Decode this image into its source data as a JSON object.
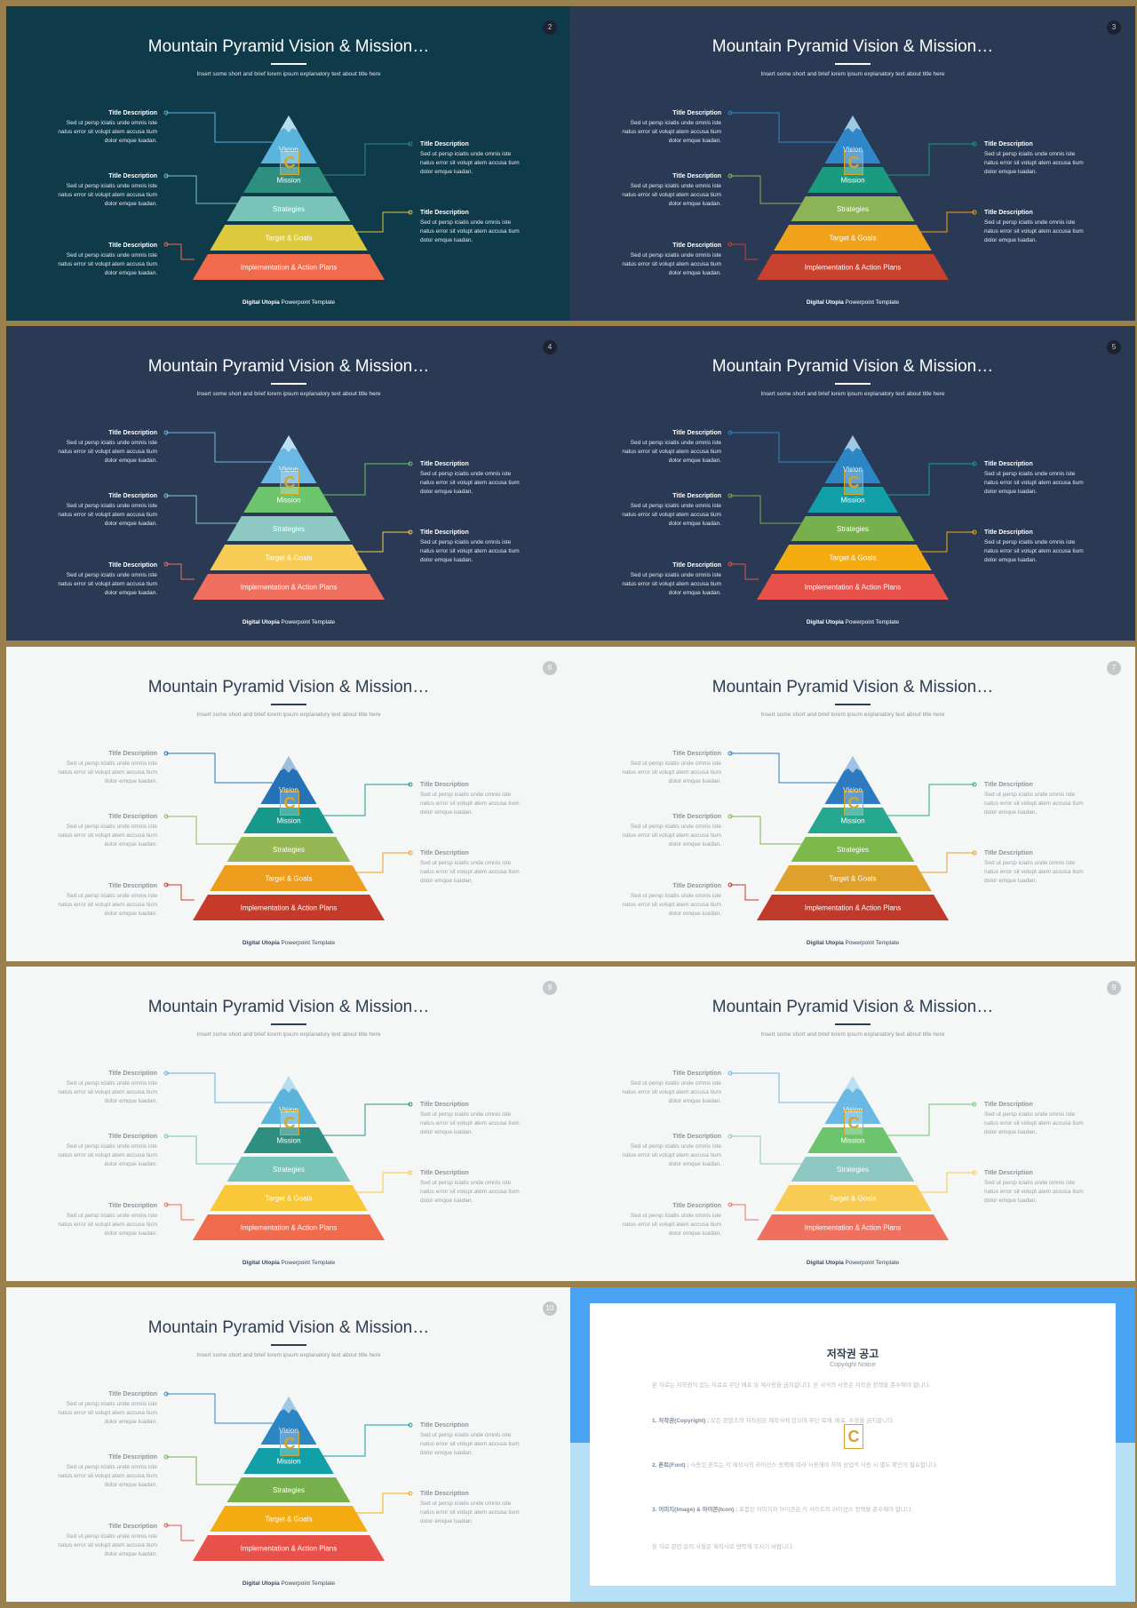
{
  "colors": {
    "frame": "#9a804c",
    "dark_teal": "#0f3a4a",
    "dark_navy": "#2a3a55",
    "light": "#f5f6f6"
  },
  "common": {
    "title": "Mountain Pyramid Vision & Mission…",
    "subtitle": "Insert some short and brief lorem ipsum explanatory text about title here",
    "desc_title": "Title Description",
    "desc_body": [
      "Sed ut persp iciatis unde omnis iste",
      "natus error sit volupt atem accusa tium",
      "dolor emque luadan."
    ],
    "footer_brand": "Digital Utopia",
    "footer_rest": " Powerpoint Template",
    "levels": [
      "Vision",
      "Mission",
      "Strategies",
      "Target & Goals",
      "Implementation & Action Plans"
    ],
    "watermark": "C"
  },
  "slides": [
    {
      "number": "2",
      "theme": "dark-teal",
      "colors": [
        "#5ab4dc",
        "#2e8f80",
        "#78c4b8",
        "#ddc93c",
        "#f06a4c"
      ],
      "lines": [
        "#5ab4dc",
        "#2e8f80",
        "#78c4b8",
        "#ddc93c",
        "#f06a4c"
      ]
    },
    {
      "number": "3",
      "theme": "dark-navy",
      "colors": [
        "#2f86c8",
        "#1a9b80",
        "#8ab456",
        "#f0a21c",
        "#c8402e"
      ],
      "lines": [
        "#2f86c8",
        "#1a9b80",
        "#8ab456",
        "#f0a21c",
        "#c8402e"
      ]
    },
    {
      "number": "4",
      "theme": "dark-navy",
      "colors": [
        "#6ab8e4",
        "#6cc46c",
        "#8ec8c2",
        "#f8cc54",
        "#f07060"
      ],
      "lines": [
        "#6ab8e4",
        "#6cc46c",
        "#8ec8c2",
        "#f8cc54",
        "#f07060"
      ]
    },
    {
      "number": "5",
      "theme": "dark-navy",
      "colors": [
        "#2c86c4",
        "#12a0a8",
        "#78b04e",
        "#f4ac10",
        "#e8504a"
      ],
      "lines": [
        "#2c86c4",
        "#12a0a8",
        "#78b04e",
        "#f4ac10",
        "#e8504a"
      ]
    },
    {
      "number": "6",
      "theme": "light",
      "colors": [
        "#2672b6",
        "#16988a",
        "#96b854",
        "#ee9c1c",
        "#c63a2a"
      ],
      "lines": [
        "#2672b6",
        "#16988a",
        "#96b854",
        "#ee9c1c",
        "#c63a2a"
      ]
    },
    {
      "number": "7",
      "theme": "light",
      "colors": [
        "#2e7ac0",
        "#26a88e",
        "#7cb84a",
        "#e0a02c",
        "#c03a2c"
      ],
      "lines": [
        "#2e7ac0",
        "#26a88e",
        "#7cb84a",
        "#e0a02c",
        "#c03a2c"
      ]
    },
    {
      "number": "8",
      "theme": "light",
      "colors": [
        "#5ab4dc",
        "#2e8f80",
        "#78c4b8",
        "#f8c838",
        "#f06a4c"
      ],
      "lines": [
        "#5ab4dc",
        "#2e8f80",
        "#78c4b8",
        "#f8c838",
        "#f06a4c"
      ]
    },
    {
      "number": "9",
      "theme": "light",
      "colors": [
        "#6ab8e4",
        "#6cc46c",
        "#8ec8c2",
        "#f8cc54",
        "#f07060"
      ],
      "lines": [
        "#6ab8e4",
        "#6cc46c",
        "#8ec8c2",
        "#f8cc54",
        "#f07060"
      ]
    },
    {
      "number": "10",
      "theme": "light",
      "colors": [
        "#2c86c4",
        "#12a0a8",
        "#78b04e",
        "#f4ac10",
        "#e8504a"
      ],
      "lines": [
        "#2c86c4",
        "#12a0a8",
        "#78b04e",
        "#f4ac10",
        "#e8504a"
      ]
    }
  ],
  "copyright": {
    "title": "저작권 공고",
    "subtitle": "Copyright Notice",
    "p1": "본 자료는 저작권이 있는 자료로 무단 배포 및 재사용을 금지합니다. 본 서식의 사용은 저작권 정책을 준수해야 합니다.",
    "p2_label": "1. 저작권(Copyright) :",
    "p2": " 모든 콘텐츠의 저작권은 제작사에 있으며 무단 복제, 배포, 수정을 금지합니다.",
    "p3_label": "2. 폰트(Font) :",
    "p3": " 사용된 폰트는 각 제작사의 라이선스 정책에 따라 사용해야 하며 상업적 사용 시 별도 확인이 필요합니다.",
    "p4_label": "3. 이미지(Image) & 아이콘(Icon) :",
    "p4": " 포함된 이미지와 아이콘은 각 사이트의 라이선스 정책을 준수해야 합니다.",
    "p5": "본 자료 관련 문의 사항은 제작사로 연락해 주시기 바랍니다."
  }
}
